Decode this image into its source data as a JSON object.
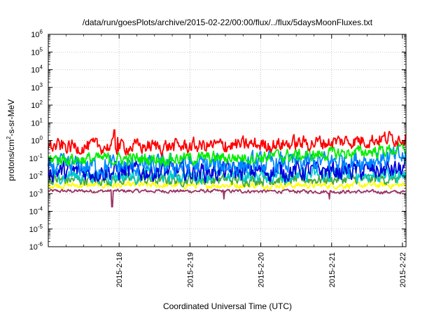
{
  "chart_data": {
    "type": "line",
    "title": "/data/run/goesPlots/archive/2015-02-22/00:00/flux/../flux/5daysMoonFluxes.txt",
    "xlabel": "Coordinated Universal Time (UTC)",
    "ylabel_parts": {
      "base": "protons/cm",
      "sup": "2",
      "rest": "-s-sr-MeV"
    },
    "y_scale": "log",
    "ylim_exponents": [
      -6,
      6
    ],
    "y_tick_base": "10",
    "y_tick_exponents": [
      "-6",
      "-5",
      "-4",
      "-3",
      "-2",
      "-1",
      "0",
      "1",
      "2",
      "3",
      "4",
      "5",
      "6"
    ],
    "x_tick_labels": [
      "2015-2-18",
      "2015-2-19",
      "2015-2-20",
      "2015-2-21",
      "2015-2-22"
    ],
    "x_range_days": [
      17.0,
      22.05
    ],
    "x_tick_days": [
      18,
      19,
      20,
      21,
      22
    ],
    "grid": true,
    "series": [
      {
        "color": "#ff0000",
        "base": 0.45,
        "start": 0.2,
        "end": 1.6,
        "noise": 0.35,
        "spikes": [
          [
            17.93,
            4.0
          ],
          [
            17.98,
            1.5
          ],
          [
            19.5,
            0.8
          ]
        ],
        "dips": []
      },
      {
        "color": "#00ee00",
        "base": 0.09,
        "start": 0.08,
        "end": 0.35,
        "noise": 0.3,
        "spikes": [],
        "dips": []
      },
      {
        "color": "#0088ff",
        "base": 0.035,
        "start": 0.03,
        "end": 0.12,
        "noise": 0.5,
        "spikes": [],
        "dips": []
      },
      {
        "color": "#0000dd",
        "base": 0.018,
        "start": 0.015,
        "end": 0.022,
        "noise": 0.45,
        "spikes": [],
        "dips": []
      },
      {
        "color": "#00cccc",
        "base": 0.011,
        "start": 0.01,
        "end": 0.012,
        "noise": 0.35,
        "spikes": [],
        "dips": []
      },
      {
        "color": "#44aa44",
        "base": 0.006,
        "start": 0.006,
        "end": 0.007,
        "noise": 0.25,
        "spikes": [],
        "dips": []
      },
      {
        "color": "#ffff00",
        "base": 0.003,
        "start": 0.003,
        "end": 0.003,
        "noise": 0.15,
        "spikes": [],
        "dips": []
      },
      {
        "color": "#993366",
        "base": 0.0014,
        "start": 0.0015,
        "end": 0.0012,
        "noise": 0.08,
        "spikes": [],
        "dips": [
          [
            17.9,
            0.00018
          ],
          [
            19.48,
            0.0005
          ],
          [
            20.97,
            0.0005
          ]
        ]
      }
    ]
  }
}
